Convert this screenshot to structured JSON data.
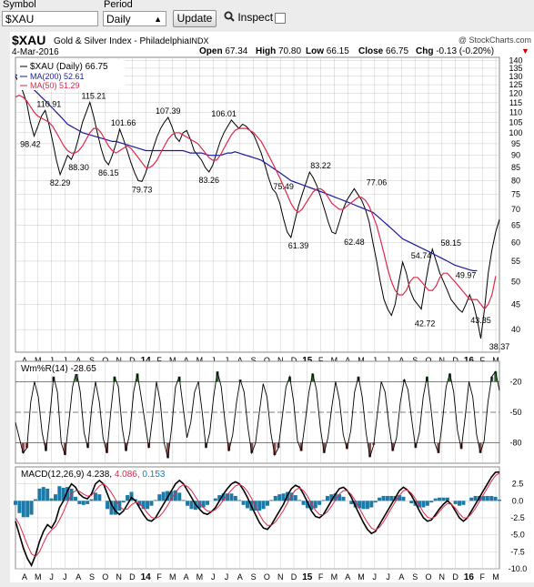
{
  "toolbar": {
    "symbol_label": "Symbol",
    "symbol_value": "$XAU",
    "period_label": "Period",
    "period_value": "Daily",
    "update_label": "Update",
    "inspect_label": "Inspect"
  },
  "header": {
    "symbol": "$XAU",
    "name": "Gold & Silver Index - Philadelphia",
    "exchange": "INDX",
    "date": "4-Mar-2016",
    "watermark": "@ StockCharts.com",
    "ohlc": [
      {
        "label": "Open",
        "value": "67.34"
      },
      {
        "label": "High",
        "value": "70.80"
      },
      {
        "label": "Low",
        "value": "66.15"
      },
      {
        "label": "Close",
        "value": "66.75"
      },
      {
        "label": "Chg",
        "value": "-0.13 (-0.20%)"
      }
    ],
    "arrow": "▼"
  },
  "legend": {
    "price": "$XAU (Daily) 66.75",
    "ma200": "MA(200) 52.61",
    "ma50": "MA(50) 51.29"
  },
  "wpr_legend": "Wm%R(14) -28.65",
  "macd_legend": {
    "label": "MACD(12,26,9)",
    "macd": "4.238",
    "signal": "4.086",
    "hist": "0.153"
  },
  "colors": {
    "price": "#000000",
    "ma200": "#1a1a9c",
    "ma50": "#e0284a",
    "wpr_fill": "#8b4a4a",
    "wpr_fill_top": "#2d6b2d",
    "macd_hist": "#1b7aa8",
    "grid": "#c8c8c8"
  },
  "chart_data": [
    {
      "type": "line",
      "panel": "price",
      "scale": "log",
      "ylim": [
        36,
        142
      ],
      "yticks": [
        "140",
        "135",
        "130",
        "125",
        "120",
        "115",
        "110",
        "105",
        "100",
        "95",
        "90",
        "85",
        "80",
        "75",
        "70",
        "65",
        "60",
        "55",
        "50",
        "45",
        "40"
      ],
      "xticks": [
        "A",
        "M",
        "J",
        "J",
        "A",
        "S",
        "O",
        "N",
        "D",
        "14",
        "F",
        "M",
        "A",
        "M",
        "J",
        "J",
        "A",
        "S",
        "O",
        "N",
        "D",
        "15",
        "F",
        "M",
        "A",
        "M",
        "J",
        "J",
        "A",
        "S",
        "O",
        "N",
        "D",
        "16",
        "F",
        "M"
      ],
      "annotations": [
        {
          "label": "98.42",
          "x": 6,
          "y": 98.42
        },
        {
          "label": "110.91",
          "x": 13,
          "y": 110.91
        },
        {
          "label": "82.29",
          "x": 18,
          "y": 82.29
        },
        {
          "label": "88.30",
          "x": 25,
          "y": 88.3
        },
        {
          "label": "115.21",
          "x": 32,
          "y": 115.21
        },
        {
          "label": "86.15",
          "x": 37,
          "y": 86.15
        },
        {
          "label": "101.66",
          "x": 43,
          "y": 101.66
        },
        {
          "label": "79.73",
          "x": 52,
          "y": 79.73
        },
        {
          "label": "107.39",
          "x": 62,
          "y": 107.39
        },
        {
          "label": "83.26",
          "x": 78,
          "y": 83.26
        },
        {
          "label": "106.01",
          "x": 84,
          "y": 106.01
        },
        {
          "label": "75.49",
          "x": 108,
          "y": 75.49
        },
        {
          "label": "61.39",
          "x": 114,
          "y": 61.39
        },
        {
          "label": "83.22",
          "x": 124,
          "y": 83.22
        },
        {
          "label": "62.48",
          "x": 137,
          "y": 62.48
        },
        {
          "label": "77.06",
          "x": 146,
          "y": 77.06
        },
        {
          "label": "54.74",
          "x": 164,
          "y": 54.74
        },
        {
          "label": "42.72",
          "x": 166,
          "y": 42.72
        },
        {
          "label": "58.15",
          "x": 177,
          "y": 58.15
        },
        {
          "label": "49.97",
          "x": 183,
          "y": 49.97
        },
        {
          "label": "43.35",
          "x": 188,
          "y": 43.35
        },
        {
          "label": "38.37",
          "x": 196,
          "y": 38.37
        }
      ],
      "series": [
        {
          "name": "$XAU (Daily)",
          "values": [
            130,
            126,
            121,
            115,
            105,
            98.42,
            103,
            108,
            110.91,
            104,
            96,
            88,
            82.29,
            86,
            90,
            88.3,
            92,
            98,
            105,
            110,
            115.21,
            108,
            100,
            93,
            88,
            86.15,
            90,
            95,
            101.66,
            97,
            92,
            87,
            83,
            80,
            79.73,
            83,
            88,
            93,
            98,
            102,
            105,
            107.39,
            103,
            98,
            96,
            100,
            101,
            97,
            92,
            90,
            88,
            85,
            83.26,
            86,
            91,
            96,
            100,
            103,
            106.01,
            104,
            102,
            104,
            103,
            101,
            99,
            95,
            91,
            86,
            81,
            77,
            75.49,
            72,
            67,
            63,
            61.39,
            66,
            71,
            75,
            79,
            83.22,
            81,
            78,
            74,
            70,
            66,
            63,
            62.48,
            66,
            70,
            73,
            75,
            77.06,
            75,
            73,
            70,
            66,
            60,
            55,
            50,
            46,
            44,
            42.72,
            45,
            50,
            54.74,
            52,
            48,
            46,
            45,
            44,
            49,
            54,
            58.15,
            55,
            52,
            49.97,
            48,
            46,
            45,
            44,
            43.35,
            45,
            47,
            45,
            42,
            38.37,
            44,
            52,
            58,
            63,
            66.75
          ]
        },
        {
          "name": "MA(200)",
          "values": [
            131,
            130,
            128,
            126,
            124,
            122,
            120,
            118,
            116,
            114,
            112,
            110,
            108,
            106,
            104,
            103,
            102,
            101,
            100,
            99.5,
            99,
            98.5,
            98,
            97.5,
            97,
            96.5,
            96,
            96,
            95.5,
            95,
            94.5,
            94,
            93.5,
            93,
            92.5,
            92,
            92,
            92,
            92,
            92,
            92,
            92,
            92,
            92,
            92,
            92,
            91.5,
            91,
            91,
            91,
            91,
            90.5,
            90,
            90,
            90,
            90,
            90.5,
            91,
            91,
            91.5,
            91,
            90.5,
            90,
            89.5,
            89,
            88.5,
            88,
            87,
            86,
            85,
            84,
            83,
            82,
            81,
            80,
            79.5,
            79,
            78.5,
            78,
            77.5,
            77,
            76.5,
            76,
            75.5,
            75,
            74.5,
            74,
            73.5,
            73,
            72.5,
            72,
            71.5,
            71,
            70.5,
            70,
            69.5,
            69,
            68,
            67,
            66,
            65,
            64,
            63,
            62,
            61,
            60.5,
            60,
            59.5,
            59,
            58.5,
            58,
            57.5,
            57,
            56.5,
            56,
            55.5,
            55,
            54.5,
            54,
            53.7,
            53.4,
            53.1,
            52.8,
            52.6,
            52.61
          ]
        },
        {
          "name": "MA(50)",
          "values": [
            118,
            119,
            118,
            116,
            113,
            110,
            108,
            107,
            106,
            105,
            103,
            100,
            97,
            94,
            92,
            91,
            91,
            92,
            94,
            97,
            100,
            102,
            102,
            100,
            97,
            94,
            92,
            91,
            92,
            93,
            94,
            93,
            91,
            89,
            87,
            85,
            85,
            86,
            88,
            91,
            94,
            97,
            99,
            100,
            100,
            99,
            98,
            97,
            96,
            95,
            93,
            91,
            89,
            88,
            88,
            90,
            93,
            96,
            99,
            101,
            102,
            102,
            102,
            101,
            100,
            98,
            96,
            93,
            90,
            87,
            84,
            81,
            78,
            75,
            72,
            70,
            69,
            70,
            72,
            74,
            76,
            77,
            77,
            76,
            74,
            72,
            71,
            70,
            70,
            71,
            72,
            73,
            74,
            74,
            73,
            71,
            68,
            65,
            61,
            57,
            53,
            50,
            48,
            47,
            47,
            48,
            50,
            51,
            51,
            50,
            49,
            48,
            48,
            49,
            51,
            52,
            52,
            51,
            50,
            49,
            48,
            47,
            46,
            46,
            46,
            45,
            44,
            45,
            47,
            51.29
          ]
        }
      ]
    },
    {
      "type": "line",
      "panel": "wpr",
      "ylim": [
        -100,
        0
      ],
      "yticks": [
        "-20",
        "-50",
        "-80"
      ],
      "series": [
        {
          "name": "Wm%R(14)",
          "values": [
            -60,
            -75,
            -90,
            -85,
            -40,
            -20,
            -35,
            -70,
            -88,
            -55,
            -15,
            -30,
            -80,
            -92,
            -60,
            -25,
            -10,
            -30,
            -70,
            -85,
            -45,
            -20,
            -40,
            -75,
            -90,
            -50,
            -15,
            -25,
            -65,
            -88,
            -70,
            -30,
            -12,
            -35,
            -60,
            -85,
            -55,
            -20,
            -40,
            -80,
            -95,
            -65,
            -25,
            -15,
            -45,
            -75,
            -60,
            -30,
            -20,
            -50,
            -85,
            -70,
            -35,
            -10,
            -25,
            -60,
            -88,
            -72,
            -40,
            -18,
            -30,
            -65,
            -90,
            -80,
            -50,
            -22,
            -35,
            -70,
            -92,
            -85,
            -55,
            -25,
            -15,
            -40,
            -78,
            -88,
            -60,
            -30,
            -12,
            -28,
            -65,
            -90,
            -75,
            -45,
            -20,
            -38,
            -72,
            -86,
            -68,
            -30,
            -15,
            -35,
            -70,
            -94,
            -82,
            -50,
            -20,
            -30,
            -62,
            -88,
            -75,
            -40,
            -18,
            -28,
            -58,
            -85,
            -70,
            -35,
            -15,
            -45,
            -80,
            -90,
            -60,
            -25,
            -12,
            -30,
            -68,
            -86,
            -55,
            -20,
            -35,
            -72,
            -90,
            -78,
            -40,
            -15,
            -10,
            -28.65
          ]
        }
      ]
    },
    {
      "type": "line",
      "panel": "macd",
      "ylim": [
        -10,
        5
      ],
      "yticks": [
        "2.5",
        "0.0",
        "-2.5",
        "-5.0",
        "-7.5",
        "-10.0"
      ],
      "series": [
        {
          "name": "MACD",
          "values": [
            -3,
            -5,
            -7,
            -8.5,
            -9.5,
            -8,
            -6,
            -4.5,
            -3.5,
            -4,
            -3,
            -1,
            0,
            1.5,
            2.5,
            2,
            1,
            0.5,
            0.3,
            1,
            2.5,
            3,
            2.5,
            1,
            -0.5,
            -1.5,
            -2,
            -1.5,
            -0.5,
            0.5,
            0,
            -1,
            -2,
            -2.8,
            -3,
            -2.5,
            -1.5,
            -0.5,
            0.5,
            1.5,
            2.5,
            3,
            2.5,
            1.5,
            0.5,
            -0.5,
            -1.2,
            -1.8,
            -2,
            -1.6,
            -1,
            0,
            1,
            1.8,
            2.5,
            2.8,
            2.5,
            1.6,
            0.5,
            -0.8,
            -2,
            -3.2,
            -4,
            -4.2,
            -3.5,
            -2.5,
            -1.5,
            -0.5,
            0.8,
            1.8,
            2.3,
            2,
            1,
            -0.2,
            -1.5,
            -2.3,
            -2.5,
            -2,
            -1,
            0,
            1,
            1.8,
            2,
            1.5,
            0.5,
            -0.8,
            -2,
            -3.2,
            -4.2,
            -4.8,
            -4.5,
            -3.5,
            -2.5,
            -1.5,
            -0.5,
            0.5,
            1.5,
            2,
            1.6,
            0.8,
            -0.3,
            -1.5,
            -2.5,
            -3,
            -2.8,
            -2,
            -1.2,
            -0.5,
            0,
            -0.5,
            -1.5,
            -2.5,
            -3,
            -2.5,
            -1.5,
            -0.5,
            0.5,
            1.5,
            2.5,
            3.5,
            4.2,
            4.238
          ]
        },
        {
          "name": "Signal",
          "values": [
            -2.5,
            -3.5,
            -5,
            -6.5,
            -7.8,
            -8.2,
            -7.5,
            -6.2,
            -5,
            -4.3,
            -3.8,
            -2.8,
            -1.6,
            -0.2,
            1,
            1.5,
            1.4,
            1,
            0.7,
            0.8,
            1.5,
            2.2,
            2.5,
            2,
            1.2,
            0.2,
            -0.8,
            -1.3,
            -1.2,
            -0.6,
            -0.2,
            -0.4,
            -1,
            -1.8,
            -2.4,
            -2.6,
            -2.3,
            -1.6,
            -0.7,
            0.3,
            1.2,
            2,
            2.4,
            2.1,
            1.5,
            0.6,
            -0.3,
            -1,
            -1.5,
            -1.6,
            -1.3,
            -0.7,
            0.1,
            0.9,
            1.6,
            2.2,
            2.4,
            2.1,
            1.4,
            0.4,
            -0.8,
            -2,
            -3,
            -3.6,
            -3.6,
            -3.1,
            -2.3,
            -1.4,
            -0.3,
            0.8,
            1.6,
            1.9,
            1.5,
            0.7,
            -0.4,
            -1.4,
            -2,
            -2.1,
            -1.6,
            -0.8,
            0.1,
            1,
            1.5,
            1.5,
            0.9,
            0,
            -1.1,
            -2.2,
            -3.2,
            -4,
            -4.3,
            -3.9,
            -3.1,
            -2.1,
            -1.1,
            -0.1,
            0.8,
            1.5,
            1.6,
            1.1,
            0.3,
            -0.7,
            -1.7,
            -2.4,
            -2.6,
            -2.3,
            -1.6,
            -0.9,
            -0.4,
            -0.5,
            -1.1,
            -1.9,
            -2.5,
            -2.5,
            -1.9,
            -1.1,
            -0.1,
            0.9,
            1.9,
            2.9,
            3.7,
            4.086
          ]
        }
      ]
    }
  ]
}
